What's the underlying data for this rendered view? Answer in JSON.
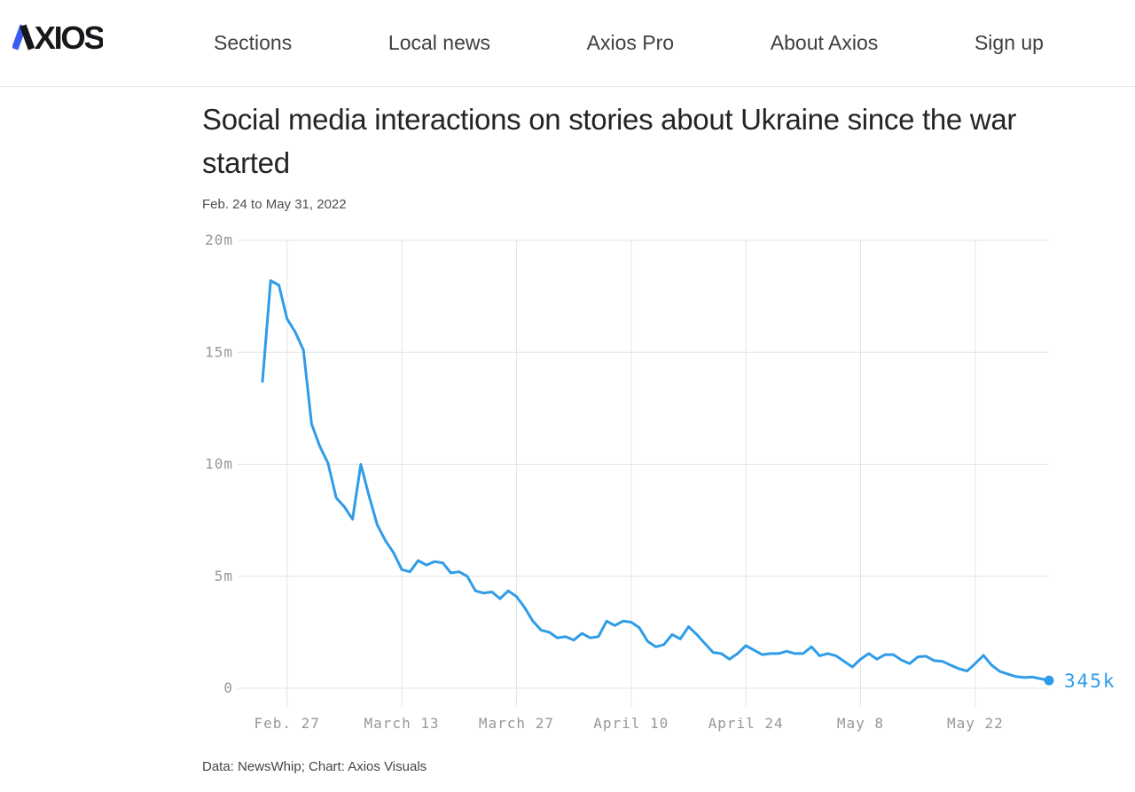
{
  "brand": {
    "logo_text": "AXIOS",
    "logo_text_rest": "XIOS",
    "logo_blue": "#3b5af0"
  },
  "header": {
    "nav": [
      {
        "label": "Sections"
      },
      {
        "label": "Local news"
      },
      {
        "label": "Axios Pro"
      },
      {
        "label": "About Axios"
      },
      {
        "label": "Sign up"
      }
    ]
  },
  "article": {
    "title": "Social media interactions on stories about Ukraine since the war started",
    "subtitle": "Feb. 24 to May 31, 2022",
    "source_note": "Data: NewsWhip; Chart: Axios Visuals"
  },
  "chart_data": {
    "type": "line",
    "title": "Social media interactions on stories about Ukraine since the war started",
    "subtitle": "Feb. 24 to May 31, 2022",
    "x_start_date": "2022-02-24",
    "x_end_date": "2022-05-31",
    "x_tick_labels": [
      "Feb. 27",
      "March 13",
      "March 27",
      "April 10",
      "April 24",
      "May 8",
      "May 22"
    ],
    "x_tick_day_index": [
      3,
      17,
      31,
      45,
      59,
      73,
      87
    ],
    "y_ticks": [
      0,
      5,
      10,
      15,
      20
    ],
    "y_tick_labels": [
      "0",
      "5m",
      "10m",
      "15m",
      "20m"
    ],
    "ylim": [
      0,
      20
    ],
    "y_unit": "millions of interactions",
    "grid": true,
    "legend": "none",
    "line_color": "#2f9ce8",
    "end_label": "345k",
    "end_value_millions": 0.345,
    "values_millions": [
      13.7,
      18.2,
      18.0,
      16.5,
      15.9,
      15.1,
      11.8,
      10.8,
      10.05,
      8.5,
      8.1,
      7.55,
      10.0,
      8.6,
      7.3,
      6.6,
      6.05,
      5.3,
      5.2,
      5.7,
      5.5,
      5.65,
      5.6,
      5.15,
      5.2,
      5.0,
      4.35,
      4.25,
      4.3,
      4.0,
      4.35,
      4.1,
      3.6,
      3.0,
      2.6,
      2.5,
      2.25,
      2.3,
      2.15,
      2.45,
      2.25,
      2.3,
      3.0,
      2.8,
      3.0,
      2.95,
      2.7,
      2.1,
      1.85,
      1.95,
      2.4,
      2.2,
      2.75,
      2.4,
      2.0,
      1.6,
      1.55,
      1.3,
      1.55,
      1.9,
      1.7,
      1.5,
      1.55,
      1.55,
      1.65,
      1.55,
      1.55,
      1.85,
      1.45,
      1.55,
      1.45,
      1.2,
      0.95,
      1.3,
      1.55,
      1.3,
      1.5,
      1.5,
      1.26,
      1.1,
      1.4,
      1.43,
      1.23,
      1.2,
      1.03,
      0.87,
      0.77,
      1.1,
      1.47,
      1.03,
      0.75,
      0.63,
      0.52,
      0.48,
      0.5,
      0.42,
      0.345
    ]
  }
}
